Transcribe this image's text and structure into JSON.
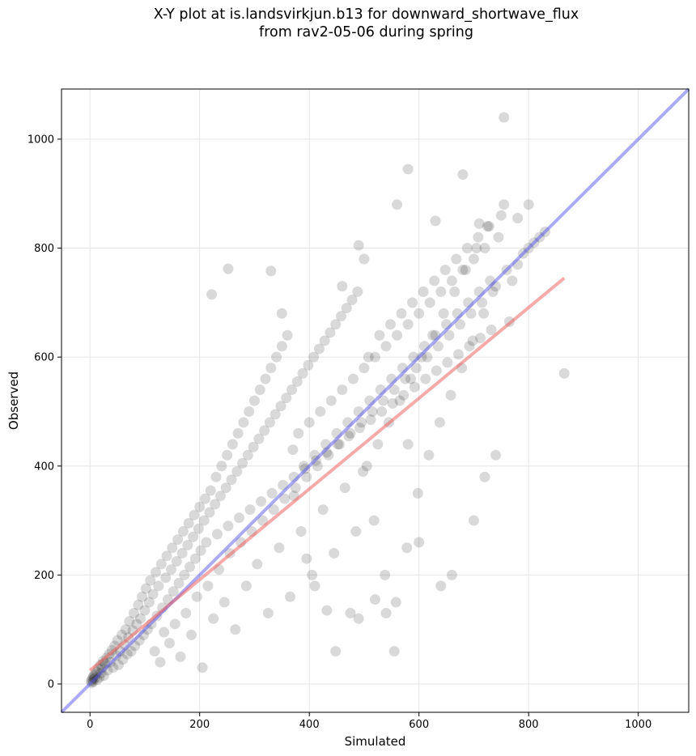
{
  "chart_data": {
    "type": "scatter",
    "title_line1": "X-Y plot at is.landsvirkjun.b13 for downward_shortwave_flux",
    "title_line2": "from rav2-05-06 during spring",
    "xlabel": "Simulated",
    "ylabel": "Observed",
    "xlim": [
      -52,
      1092
    ],
    "ylim": [
      -52,
      1092
    ],
    "xticks": [
      0,
      200,
      400,
      600,
      800,
      1000
    ],
    "yticks": [
      0,
      200,
      400,
      600,
      800,
      1000
    ],
    "grid": true,
    "one_to_one_line": {
      "color": "#5555ee",
      "from": [
        -52,
        -52
      ],
      "to": [
        1092,
        1092
      ]
    },
    "fit_line": {
      "color": "#ee5555",
      "from": [
        0,
        25
      ],
      "to": [
        865,
        745
      ]
    },
    "point_color": "#000000",
    "point_opacity": 0.15,
    "points": [
      [
        2,
        5
      ],
      [
        3,
        2
      ],
      [
        4,
        8
      ],
      [
        5,
        12
      ],
      [
        6,
        4
      ],
      [
        7,
        15
      ],
      [
        8,
        10
      ],
      [
        10,
        18
      ],
      [
        12,
        22
      ],
      [
        13,
        8
      ],
      [
        15,
        28
      ],
      [
        17,
        12
      ],
      [
        19,
        35
      ],
      [
        20,
        20
      ],
      [
        22,
        30
      ],
      [
        24,
        42
      ],
      [
        25,
        15
      ],
      [
        27,
        38
      ],
      [
        30,
        48
      ],
      [
        32,
        25
      ],
      [
        35,
        55
      ],
      [
        37,
        40
      ],
      [
        40,
        62
      ],
      [
        42,
        30
      ],
      [
        45,
        70
      ],
      [
        48,
        52
      ],
      [
        50,
        80
      ],
      [
        52,
        35
      ],
      [
        55,
        60
      ],
      [
        58,
        90
      ],
      [
        60,
        45
      ],
      [
        63,
        72
      ],
      [
        65,
        100
      ],
      [
        68,
        55
      ],
      [
        70,
        85
      ],
      [
        72,
        115
      ],
      [
        75,
        60
      ],
      [
        78,
        98
      ],
      [
        80,
        130
      ],
      [
        82,
        70
      ],
      [
        85,
        110
      ],
      [
        88,
        145
      ],
      [
        90,
        80
      ],
      [
        92,
        120
      ],
      [
        95,
        160
      ],
      [
        98,
        90
      ],
      [
        100,
        135
      ],
      [
        102,
        175
      ],
      [
        105,
        100
      ],
      [
        108,
        150
      ],
      [
        110,
        190
      ],
      [
        112,
        110
      ],
      [
        115,
        165
      ],
      [
        118,
        60
      ],
      [
        120,
        205
      ],
      [
        122,
        125
      ],
      [
        125,
        180
      ],
      [
        128,
        40
      ],
      [
        130,
        220
      ],
      [
        132,
        140
      ],
      [
        135,
        95
      ],
      [
        138,
        195
      ],
      [
        140,
        235
      ],
      [
        142,
        155
      ],
      [
        145,
        75
      ],
      [
        148,
        210
      ],
      [
        150,
        250
      ],
      [
        152,
        170
      ],
      [
        155,
        110
      ],
      [
        158,
        225
      ],
      [
        160,
        265
      ],
      [
        162,
        185
      ],
      [
        165,
        50
      ],
      [
        168,
        240
      ],
      [
        170,
        280
      ],
      [
        172,
        200
      ],
      [
        175,
        130
      ],
      [
        178,
        255
      ],
      [
        180,
        295
      ],
      [
        182,
        215
      ],
      [
        185,
        90
      ],
      [
        188,
        270
      ],
      [
        190,
        310
      ],
      [
        192,
        230
      ],
      [
        195,
        160
      ],
      [
        198,
        285
      ],
      [
        200,
        325
      ],
      [
        202,
        245
      ],
      [
        205,
        30
      ],
      [
        208,
        300
      ],
      [
        210,
        340
      ],
      [
        212,
        260
      ],
      [
        215,
        180
      ],
      [
        218,
        315
      ],
      [
        220,
        355
      ],
      [
        225,
        120
      ],
      [
        228,
        330
      ],
      [
        230,
        380
      ],
      [
        232,
        275
      ],
      [
        235,
        210
      ],
      [
        238,
        345
      ],
      [
        240,
        400
      ],
      [
        245,
        150
      ],
      [
        248,
        360
      ],
      [
        250,
        420
      ],
      [
        252,
        290
      ],
      [
        255,
        240
      ],
      [
        258,
        375
      ],
      [
        260,
        440
      ],
      [
        265,
        100
      ],
      [
        268,
        390
      ],
      [
        270,
        460
      ],
      [
        272,
        305
      ],
      [
        275,
        260
      ],
      [
        278,
        405
      ],
      [
        280,
        480
      ],
      [
        285,
        180
      ],
      [
        288,
        420
      ],
      [
        290,
        500
      ],
      [
        292,
        320
      ],
      [
        295,
        280
      ],
      [
        298,
        435
      ],
      [
        300,
        520
      ],
      [
        305,
        220
      ],
      [
        308,
        450
      ],
      [
        310,
        540
      ],
      [
        312,
        335
      ],
      [
        315,
        300
      ],
      [
        318,
        465
      ],
      [
        320,
        560
      ],
      [
        325,
        130
      ],
      [
        328,
        480
      ],
      [
        330,
        580
      ],
      [
        332,
        350
      ],
      [
        335,
        320
      ],
      [
        338,
        495
      ],
      [
        340,
        600
      ],
      [
        345,
        250
      ],
      [
        348,
        510
      ],
      [
        350,
        620
      ],
      [
        352,
        365
      ],
      [
        355,
        340
      ],
      [
        358,
        525
      ],
      [
        360,
        640
      ],
      [
        365,
        160
      ],
      [
        368,
        540
      ],
      [
        370,
        430
      ],
      [
        372,
        380
      ],
      [
        375,
        360
      ],
      [
        378,
        555
      ],
      [
        380,
        460
      ],
      [
        385,
        280
      ],
      [
        388,
        570
      ],
      [
        390,
        400
      ],
      [
        392,
        395
      ],
      [
        395,
        380
      ],
      [
        398,
        585
      ],
      [
        400,
        480
      ],
      [
        405,
        200
      ],
      [
        408,
        600
      ],
      [
        410,
        420
      ],
      [
        412,
        410
      ],
      [
        415,
        400
      ],
      [
        418,
        615
      ],
      [
        420,
        500
      ],
      [
        425,
        320
      ],
      [
        428,
        630
      ],
      [
        430,
        440
      ],
      [
        432,
        425
      ],
      [
        435,
        420
      ],
      [
        438,
        645
      ],
      [
        440,
        520
      ],
      [
        445,
        240
      ],
      [
        448,
        660
      ],
      [
        450,
        460
      ],
      [
        452,
        440
      ],
      [
        455,
        440
      ],
      [
        458,
        675
      ],
      [
        460,
        540
      ],
      [
        465,
        360
      ],
      [
        468,
        690
      ],
      [
        470,
        480
      ],
      [
        472,
        455
      ],
      [
        475,
        460
      ],
      [
        478,
        705
      ],
      [
        480,
        560
      ],
      [
        485,
        280
      ],
      [
        488,
        720
      ],
      [
        490,
        500
      ],
      [
        492,
        470
      ],
      [
        495,
        480
      ],
      [
        498,
        390
      ],
      [
        500,
        580
      ],
      [
        505,
        400
      ],
      [
        508,
        600
      ],
      [
        510,
        520
      ],
      [
        512,
        485
      ],
      [
        515,
        500
      ],
      [
        518,
        300
      ],
      [
        520,
        600
      ],
      [
        525,
        440
      ],
      [
        528,
        640
      ],
      [
        530,
        540
      ],
      [
        532,
        500
      ],
      [
        535,
        520
      ],
      [
        538,
        200
      ],
      [
        540,
        620
      ],
      [
        545,
        480
      ],
      [
        548,
        660
      ],
      [
        550,
        560
      ],
      [
        552,
        515
      ],
      [
        555,
        540
      ],
      [
        558,
        150
      ],
      [
        560,
        640
      ],
      [
        565,
        520
      ],
      [
        568,
        680
      ],
      [
        570,
        580
      ],
      [
        572,
        530
      ],
      [
        575,
        560
      ],
      [
        578,
        250
      ],
      [
        580,
        660
      ],
      [
        585,
        560
      ],
      [
        588,
        700
      ],
      [
        590,
        600
      ],
      [
        592,
        545
      ],
      [
        595,
        580
      ],
      [
        598,
        350
      ],
      [
        600,
        680
      ],
      [
        605,
        600
      ],
      [
        608,
        720
      ],
      [
        610,
        620
      ],
      [
        612,
        560
      ],
      [
        615,
        600
      ],
      [
        618,
        420
      ],
      [
        620,
        700
      ],
      [
        625,
        640
      ],
      [
        628,
        740
      ],
      [
        630,
        640
      ],
      [
        632,
        575
      ],
      [
        635,
        620
      ],
      [
        638,
        480
      ],
      [
        640,
        720
      ],
      [
        645,
        680
      ],
      [
        648,
        760
      ],
      [
        650,
        660
      ],
      [
        652,
        590
      ],
      [
        655,
        640
      ],
      [
        658,
        530
      ],
      [
        660,
        740
      ],
      [
        665,
        720
      ],
      [
        668,
        780
      ],
      [
        670,
        680
      ],
      [
        672,
        605
      ],
      [
        675,
        660
      ],
      [
        678,
        580
      ],
      [
        680,
        760
      ],
      [
        685,
        760
      ],
      [
        688,
        800
      ],
      [
        690,
        700
      ],
      [
        692,
        620
      ],
      [
        695,
        680
      ],
      [
        698,
        630
      ],
      [
        700,
        780
      ],
      [
        705,
        800
      ],
      [
        708,
        820
      ],
      [
        710,
        720
      ],
      [
        712,
        635
      ],
      [
        715,
        700
      ],
      [
        718,
        680
      ],
      [
        720,
        800
      ],
      [
        725,
        840
      ],
      [
        728,
        840
      ],
      [
        730,
        740
      ],
      [
        732,
        650
      ],
      [
        735,
        720
      ],
      [
        740,
        730
      ],
      [
        745,
        820
      ],
      [
        750,
        860
      ],
      [
        755,
        880
      ],
      [
        760,
        760
      ],
      [
        765,
        665
      ],
      [
        770,
        740
      ],
      [
        780,
        770
      ],
      [
        790,
        790
      ],
      [
        800,
        800
      ],
      [
        810,
        810
      ],
      [
        820,
        820
      ],
      [
        830,
        830
      ],
      [
        865,
        570
      ],
      [
        252,
        762
      ],
      [
        222,
        715
      ],
      [
        330,
        758
      ],
      [
        350,
        680
      ],
      [
        372,
        345
      ],
      [
        395,
        230
      ],
      [
        410,
        180
      ],
      [
        432,
        135
      ],
      [
        448,
        60
      ],
      [
        475,
        130
      ],
      [
        490,
        120
      ],
      [
        520,
        155
      ],
      [
        540,
        130
      ],
      [
        555,
        60
      ],
      [
        580,
        440
      ],
      [
        600,
        260
      ],
      [
        640,
        180
      ],
      [
        660,
        200
      ],
      [
        700,
        300
      ],
      [
        720,
        380
      ],
      [
        740,
        420
      ],
      [
        755,
        1040
      ],
      [
        580,
        945
      ],
      [
        680,
        935
      ],
      [
        560,
        880
      ],
      [
        460,
        730
      ],
      [
        490,
        805
      ],
      [
        500,
        780
      ],
      [
        630,
        850
      ],
      [
        710,
        845
      ],
      [
        800,
        880
      ],
      [
        780,
        855
      ]
    ]
  }
}
